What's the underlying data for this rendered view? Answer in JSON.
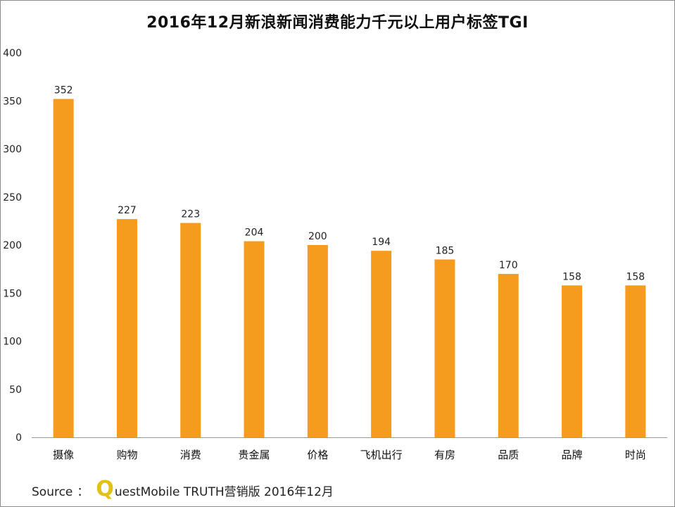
{
  "colors": {
    "bar": "#f59c1e",
    "axis": "#9a9a9a",
    "logo_q": "#e3c014"
  },
  "chart_data": {
    "type": "bar",
    "title": "2016年12月新浪新闻消费能力千元以上用户标签TGI",
    "categories": [
      "摄像",
      "购物",
      "消费",
      "贵金属",
      "价格",
      "飞机出行",
      "有房",
      "品质",
      "品牌",
      "时尚"
    ],
    "values": [
      352,
      227,
      223,
      204,
      200,
      194,
      185,
      170,
      158,
      158
    ],
    "data_labels": [
      "352",
      "227",
      "223",
      "204",
      "200",
      "194",
      "185",
      "170",
      "158",
      "158"
    ],
    "yticks": [
      0,
      50,
      100,
      150,
      200,
      250,
      300,
      350,
      400
    ],
    "ytick_labels": [
      "0",
      "50",
      "100",
      "150",
      "200",
      "250",
      "300",
      "350",
      "400"
    ],
    "ylim": [
      0,
      400
    ],
    "xlabel": "",
    "ylabel": "",
    "grid": false,
    "legend": "none"
  },
  "source": {
    "label": "Source",
    "colon": "：",
    "logo_letter": "Q",
    "text": "uestMobile TRUTH营销版 2016年12月"
  }
}
